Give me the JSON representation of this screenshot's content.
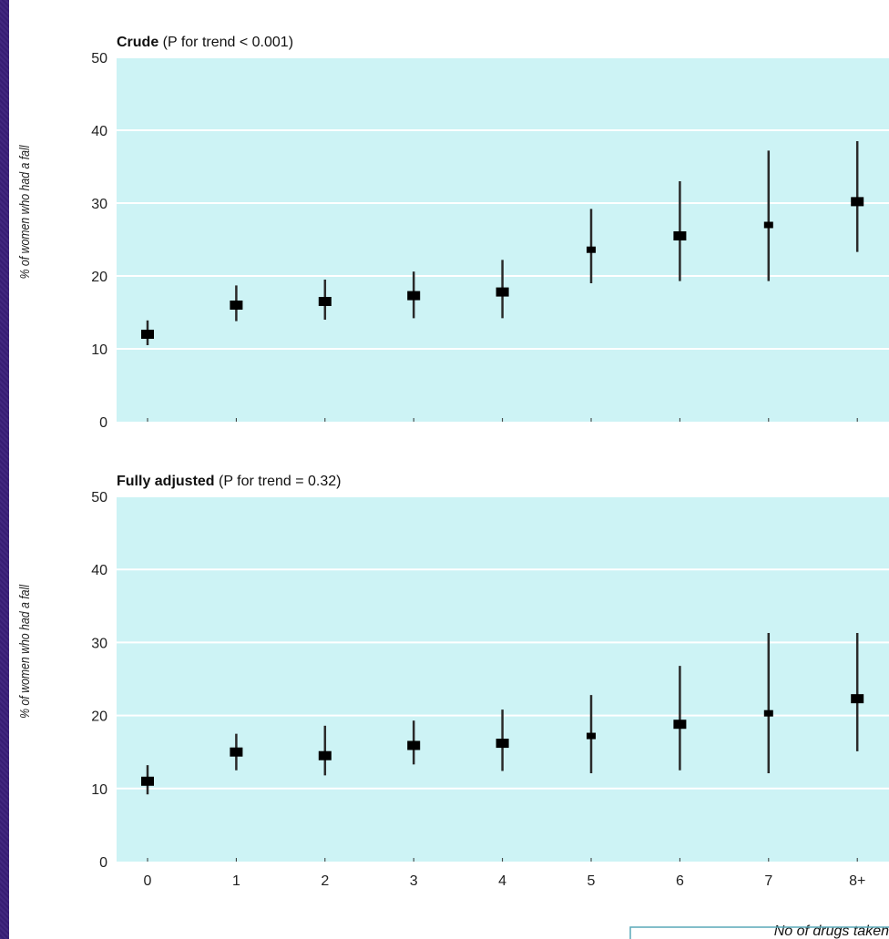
{
  "chart_data": [
    {
      "type": "scatter",
      "title_bold": "Crude",
      "title_rest": " (P for trend < 0.001)",
      "ylabel": "% of women who had a fall",
      "xlabel": "",
      "ylim": [
        0,
        50
      ],
      "yticks": [
        "0",
        "10",
        "20",
        "30",
        "40",
        "50"
      ],
      "categories": [
        "0",
        "1",
        "2",
        "3",
        "4",
        "5",
        "6",
        "7",
        "8+"
      ],
      "values": [
        12,
        16,
        16.5,
        17.3,
        17.8,
        23.6,
        25.5,
        27,
        30.2
      ],
      "ci_low": [
        10.5,
        13.8,
        14,
        14.2,
        14.2,
        19,
        19.3,
        19.3,
        23.3
      ],
      "ci_high": [
        13.9,
        18.7,
        19.5,
        20.6,
        22.2,
        29.2,
        33,
        37.2,
        38.5
      ],
      "grid": true
    },
    {
      "type": "scatter",
      "title_bold": "Fully adjusted",
      "title_rest": " (P for trend = 0.32)",
      "ylabel": "% of women who had a fall",
      "xlabel": "No of drugs taken",
      "ylim": [
        0,
        50
      ],
      "yticks": [
        "0",
        "10",
        "20",
        "30",
        "40",
        "50"
      ],
      "categories": [
        "0",
        "1",
        "2",
        "3",
        "4",
        "5",
        "6",
        "7",
        "8+"
      ],
      "values": [
        11,
        15,
        14.5,
        15.9,
        16.2,
        17.2,
        18.8,
        20.3,
        22.3
      ],
      "ci_low": [
        9.2,
        12.5,
        11.8,
        13.3,
        12.4,
        12.1,
        12.5,
        12.1,
        15.1
      ],
      "ci_high": [
        13.2,
        17.5,
        18.6,
        19.3,
        20.8,
        22.8,
        26.8,
        31.3,
        31.3
      ],
      "grid": true
    }
  ]
}
